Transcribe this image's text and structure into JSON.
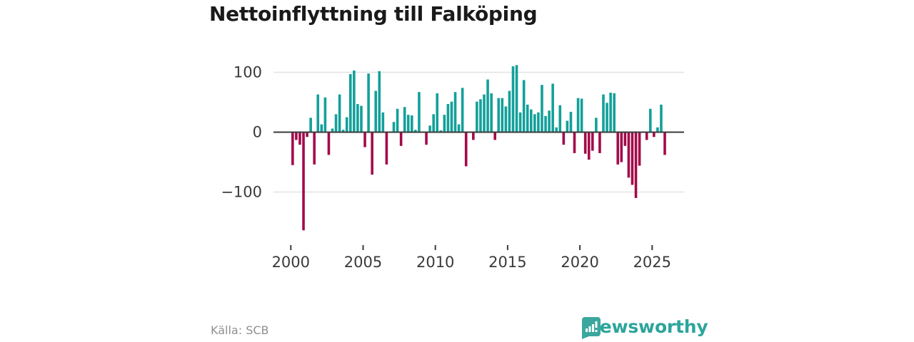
{
  "title": "Nettoinflyttning till Falköping",
  "footer": {
    "source": "Källa: SCB",
    "brand": "Newsworthy"
  },
  "colors": {
    "positive": "#13a09a",
    "negative": "#a30a4a",
    "axis": "#3a3a3a",
    "gridline": "#e2e2e2",
    "tick_text": "#3a3a3a",
    "brand_teal": "#2ca59c"
  },
  "chart_data": {
    "type": "bar",
    "title": "Nettoinflyttning till Falköping",
    "frequency": "quarterly",
    "start_period": "2000 Q1",
    "end_period": "2025 Q4",
    "x_tick_labels": [
      "2000",
      "2005",
      "2010",
      "2015",
      "2020",
      "2025"
    ],
    "y_ticks": [
      100,
      0,
      -100
    ],
    "ylim": [
      -175,
      120
    ],
    "grid": true,
    "positive_color": "#13a09a",
    "negative_color": "#a30a4a",
    "values": [
      -55,
      -13,
      -21,
      -164,
      -8,
      24,
      -54,
      63,
      13,
      58,
      -38,
      6,
      30,
      63,
      4,
      25,
      97,
      103,
      47,
      44,
      -25,
      98,
      -71,
      69,
      102,
      33,
      -54,
      0,
      17,
      39,
      -23,
      42,
      29,
      28,
      4,
      67,
      0,
      -21,
      11,
      30,
      65,
      3,
      29,
      47,
      51,
      67,
      13,
      74,
      -57,
      0,
      -13,
      51,
      55,
      63,
      88,
      65,
      -13,
      57,
      57,
      43,
      69,
      110,
      112,
      33,
      87,
      46,
      38,
      30,
      33,
      79,
      27,
      36,
      81,
      8,
      45,
      -21,
      19,
      34,
      -35,
      57,
      56,
      -36,
      -46,
      -31,
      24,
      -35,
      63,
      49,
      66,
      65,
      -54,
      -50,
      -23,
      -76,
      -88,
      -110,
      -56,
      0,
      -13,
      39,
      -8,
      8,
      46,
      -38
    ]
  }
}
